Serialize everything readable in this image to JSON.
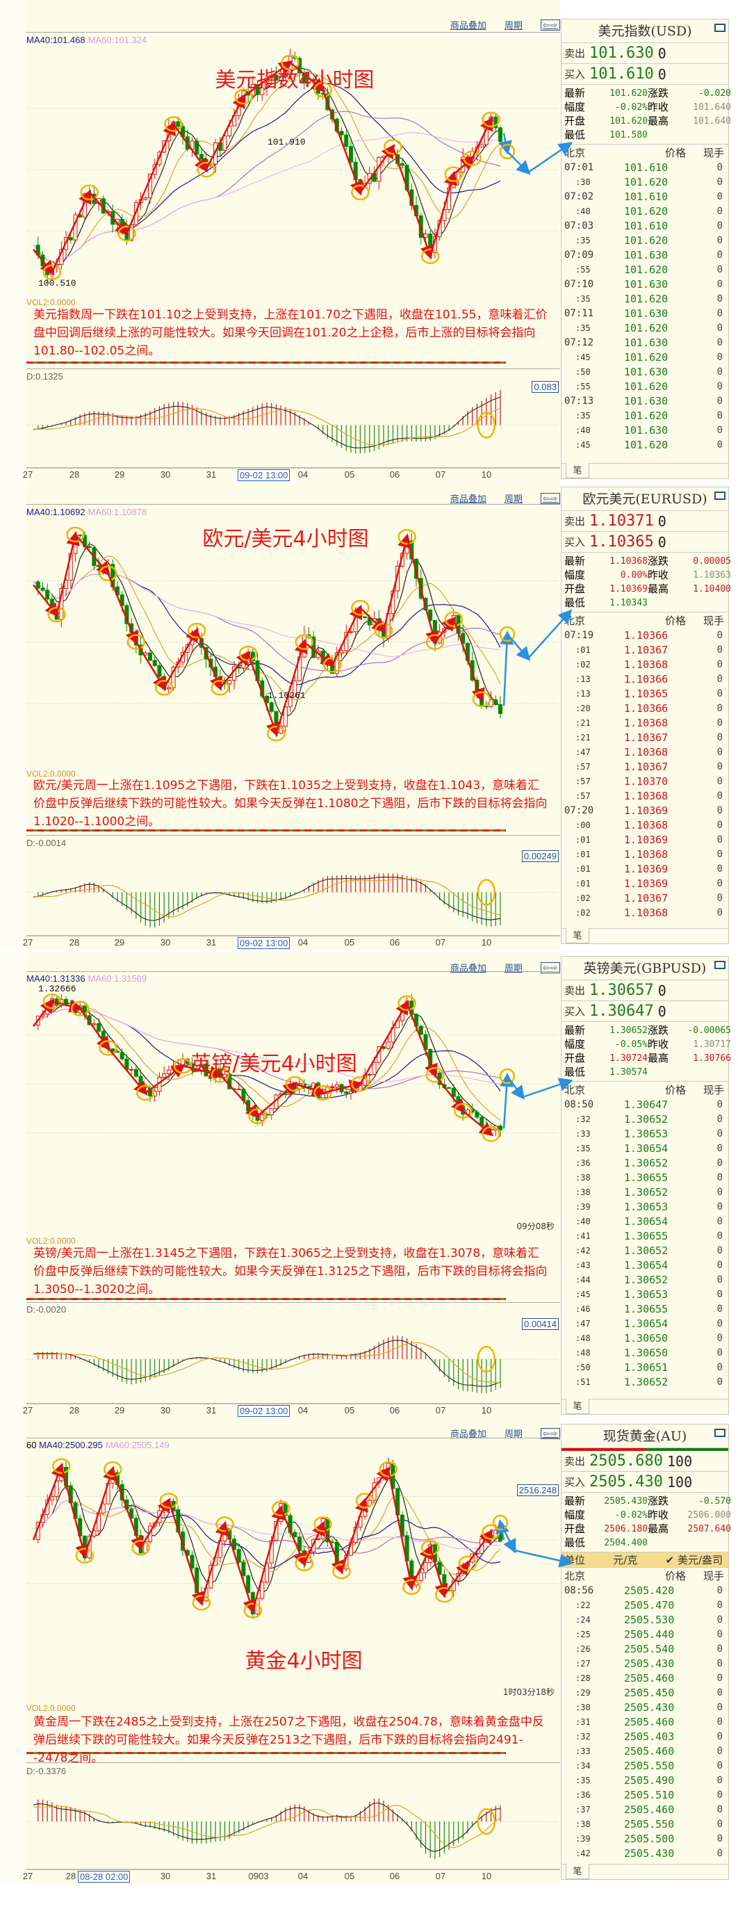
{
  "toolbar": {
    "overlay_label": "商品叠加",
    "period_label": "周期",
    "nav_label": "⇦⇨"
  },
  "colors": {
    "up": "#c8141e",
    "down": "#1e7a1e",
    "flat": "#888888",
    "annotation_arrow": "#e01010",
    "highlight_circle": "#f0b400",
    "forecast_arrow": "#2a90e0"
  },
  "panels": [
    {
      "title": "美元指数4小时图",
      "ma40": "MA40:101.468",
      "ma60": "MA60:101.324",
      "price_labels": [
        "101.910",
        "100.510"
      ],
      "vol2": "VOL2:0.0000",
      "commentary": "美元指数周一下跌在101.10之上受到支持，上涨在101.70之下遇阻，收盘在101.55，意味着汇价盘中回调后继续上涨的可能性较大。如果今天回调在101.20之上企稳，后市上涨的目标将会指向101.80--102.05之间。",
      "macd_label": "D:0.1325",
      "macd_value": "0.083",
      "timer": "",
      "axis": [
        {
          "text": "27"
        },
        {
          "text": "28"
        },
        {
          "text": "29"
        },
        {
          "text": "30"
        },
        {
          "text": "31"
        },
        {
          "text": "09-02 13:00",
          "highlight": true
        },
        {
          "text": "04"
        },
        {
          "text": "05"
        },
        {
          "text": "06"
        },
        {
          "text": "07"
        },
        {
          "text": "10"
        }
      ],
      "trend": "up",
      "sidebar": {
        "name": "美元指数(USD)",
        "sell_label": "卖出",
        "sell": "101.630",
        "sell_vol": "0",
        "sell_color": "down",
        "buy_label": "买入",
        "buy": "101.610",
        "buy_vol": "0",
        "buy_color": "down",
        "stats": [
          {
            "label": "最新",
            "value": "101.620",
            "color": "down"
          },
          {
            "label": "涨跌",
            "value": "-0.020",
            "color": "down"
          },
          {
            "label": "幅度",
            "value": "-0.02%",
            "color": "down"
          },
          {
            "label": "昨收",
            "value": "101.640",
            "color": "flat"
          },
          {
            "label": "开盘",
            "value": "101.620",
            "color": "down"
          },
          {
            "label": "最高",
            "value": "101.640",
            "color": "flat"
          },
          {
            "label": "最低",
            "value": "101.580",
            "color": "down"
          }
        ],
        "headers": [
          "北京",
          "价格",
          "现手"
        ],
        "tick_color": "down",
        "ticks": [
          [
            "07:01",
            "101.610",
            "0"
          ],
          [
            ":30",
            "101.620",
            "0"
          ],
          [
            "07:02",
            "101.610",
            "0"
          ],
          [
            ":40",
            "101.620",
            "0"
          ],
          [
            "07:03",
            "101.610",
            "0"
          ],
          [
            ":35",
            "101.620",
            "0"
          ],
          [
            "07:09",
            "101.630",
            "0"
          ],
          [
            ":55",
            "101.620",
            "0"
          ],
          [
            "07:10",
            "101.630",
            "0"
          ],
          [
            ":35",
            "101.620",
            "0"
          ],
          [
            "07:11",
            "101.630",
            "0"
          ],
          [
            ":35",
            "101.620",
            "0"
          ],
          [
            "07:12",
            "101.630",
            "0"
          ],
          [
            ":45",
            "101.620",
            "0"
          ],
          [
            ":50",
            "101.630",
            "0"
          ],
          [
            ":55",
            "101.620",
            "0"
          ],
          [
            "07:13",
            "101.630",
            "0"
          ],
          [
            ":35",
            "101.620",
            "0"
          ],
          [
            ":40",
            "101.630",
            "0"
          ],
          [
            ":45",
            "101.620",
            "0"
          ]
        ],
        "tab": "笔"
      }
    },
    {
      "title": "欧元/美元4小时图",
      "ma40": "MA40:1.10692",
      "ma60": "MA60:1.10878",
      "price_labels": [
        "1.10261"
      ],
      "vol2": "VOL2:0.0000",
      "commentary": "欧元/美元周一上涨在1.1095之下遇阻，下跌在1.1035之上受到支持，收盘在1.1043，意味着汇价盘中反弹后继续下跌的可能性较大。如果今天反弹在1.1080之下遇阻，后市下跌的目标将会指向1.1020--1.1000之间。",
      "macd_label": "D:-0.0014",
      "macd_value": "0.00249",
      "timer": "",
      "axis": [
        {
          "text": "27"
        },
        {
          "text": "28"
        },
        {
          "text": "29"
        },
        {
          "text": "30"
        },
        {
          "text": "31"
        },
        {
          "text": "09-02 13:00",
          "highlight": true
        },
        {
          "text": "04"
        },
        {
          "text": "05"
        },
        {
          "text": "06"
        },
        {
          "text": "07"
        },
        {
          "text": "10"
        }
      ],
      "trend": "down",
      "sidebar": {
        "name": "欧元美元(EURUSD)",
        "sell_label": "卖出",
        "sell": "1.10371",
        "sell_vol": "0",
        "sell_color": "up",
        "buy_label": "买入",
        "buy": "1.10365",
        "buy_vol": "0",
        "buy_color": "up",
        "stats": [
          {
            "label": "最新",
            "value": "1.10368",
            "color": "up"
          },
          {
            "label": "涨跌",
            "value": "0.00005",
            "color": "up"
          },
          {
            "label": "幅度",
            "value": "0.00%",
            "color": "up"
          },
          {
            "label": "昨收",
            "value": "1.10363",
            "color": "flat"
          },
          {
            "label": "开盘",
            "value": "1.10369",
            "color": "up"
          },
          {
            "label": "最高",
            "value": "1.10400",
            "color": "up"
          },
          {
            "label": "最低",
            "value": "1.10343",
            "color": "down"
          }
        ],
        "headers": [
          "北京",
          "价格",
          "现手"
        ],
        "tick_color": "up",
        "ticks": [
          [
            "07:19",
            "1.10366",
            "0"
          ],
          [
            ":01",
            "1.10367",
            "0"
          ],
          [
            ":02",
            "1.10368",
            "0"
          ],
          [
            ":13",
            "1.10366",
            "0"
          ],
          [
            ":13",
            "1.10365",
            "0"
          ],
          [
            ":20",
            "1.10366",
            "0"
          ],
          [
            ":21",
            "1.10368",
            "0"
          ],
          [
            ":21",
            "1.10367",
            "0"
          ],
          [
            ":47",
            "1.10368",
            "0"
          ],
          [
            ":57",
            "1.10367",
            "0"
          ],
          [
            ":57",
            "1.10370",
            "0"
          ],
          [
            ":57",
            "1.10368",
            "0"
          ],
          [
            "07:20",
            "1.10369",
            "0"
          ],
          [
            ":00",
            "1.10368",
            "0"
          ],
          [
            ":01",
            "1.10369",
            "0"
          ],
          [
            ":01",
            "1.10368",
            "0"
          ],
          [
            ":01",
            "1.10369",
            "0"
          ],
          [
            ":01",
            "1.10369",
            "0"
          ],
          [
            ":02",
            "1.10367",
            "0"
          ],
          [
            ":02",
            "1.10368",
            "0"
          ]
        ],
        "tab": "笔"
      }
    },
    {
      "title": "英镑/美元4小时图",
      "ma40": "MA40:1.31336",
      "ma60": "MA60:1.31569",
      "price_labels": [
        "1.32666"
      ],
      "vol2": "VOL2:0.0000",
      "commentary": "英镑/美元周一上涨在1.3145之下遇阻，下跌在1.3065之上受到支持，收盘在1.3078，意味着汇价盘中反弹后继续下跌的可能性较大。如果今天反弹在1.3125之下遇阻，后市下跌的目标将会指向1.3050--1.3020之间。",
      "macd_label": "D:-0.0020",
      "macd_value": "0.00414",
      "timer": "09分08秒",
      "axis": [
        {
          "text": "27"
        },
        {
          "text": "28"
        },
        {
          "text": "29"
        },
        {
          "text": "30"
        },
        {
          "text": "31"
        },
        {
          "text": "09-02 13:00",
          "highlight": true
        },
        {
          "text": "04"
        },
        {
          "text": "05"
        },
        {
          "text": "06"
        },
        {
          "text": "07"
        },
        {
          "text": "10"
        }
      ],
      "trend": "up",
      "sidebar": {
        "name": "英镑美元(GBPUSD)",
        "sell_label": "卖出",
        "sell": "1.30657",
        "sell_vol": "0",
        "sell_color": "down",
        "buy_label": "买入",
        "buy": "1.30647",
        "buy_vol": "0",
        "buy_color": "down",
        "stats": [
          {
            "label": "最新",
            "value": "1.30652",
            "color": "down"
          },
          {
            "label": "涨跌",
            "value": "-0.00065",
            "color": "down"
          },
          {
            "label": "幅度",
            "value": "-0.05%",
            "color": "down"
          },
          {
            "label": "昨收",
            "value": "1.30717",
            "color": "flat"
          },
          {
            "label": "开盘",
            "value": "1.30724",
            "color": "up"
          },
          {
            "label": "最高",
            "value": "1.30766",
            "color": "up"
          },
          {
            "label": "最低",
            "value": "1.30574",
            "color": "down"
          }
        ],
        "headers": [
          "北京",
          "价格",
          "现手"
        ],
        "tick_color": "down",
        "ticks": [
          [
            "08:50",
            "1.30647",
            "0"
          ],
          [
            ":32",
            "1.30652",
            "0"
          ],
          [
            ":33",
            "1.30653",
            "0"
          ],
          [
            ":35",
            "1.30654",
            "0"
          ],
          [
            ":36",
            "1.30652",
            "0"
          ],
          [
            ":38",
            "1.30655",
            "0"
          ],
          [
            ":38",
            "1.30652",
            "0"
          ],
          [
            ":39",
            "1.30653",
            "0"
          ],
          [
            ":40",
            "1.30654",
            "0"
          ],
          [
            ":41",
            "1.30655",
            "0"
          ],
          [
            ":42",
            "1.30652",
            "0"
          ],
          [
            ":43",
            "1.30654",
            "0"
          ],
          [
            ":44",
            "1.30652",
            "0"
          ],
          [
            ":45",
            "1.30653",
            "0"
          ],
          [
            ":46",
            "1.30655",
            "0"
          ],
          [
            ":47",
            "1.30654",
            "0"
          ],
          [
            ":48",
            "1.30650",
            "0"
          ],
          [
            ":48",
            "1.30650",
            "0"
          ],
          [
            ":50",
            "1.30651",
            "0"
          ],
          [
            ":51",
            "1.30652",
            "0"
          ]
        ],
        "tab": "笔"
      }
    },
    {
      "title": "黄金4小时图",
      "ma_prefix": "60",
      "ma40": "MA40:2500.295",
      "ma60": "MA60:2505.149",
      "price_labels": [],
      "price_box": "2516.248",
      "vol2": "VOL2:0.0000",
      "commentary": "黄金周一下跌在2485之上受到支持，上涨在2507之下遇阻，收盘在2504.78，意味着黄金盘中反弹后继续下跌的可能性较大。如果今天反弹在2513之下遇阻，后市下跌的目标将会指向2491--2478之间。",
      "macd_label": "D:-0.3376",
      "macd_value": "",
      "timer": "1时03分18秒",
      "axis": [
        {
          "text": "27"
        },
        {
          "text": "28"
        },
        {
          "text": "08-28 02:00",
          "highlight": true
        },
        {
          "text": "30"
        },
        {
          "text": "31"
        },
        {
          "text": "0903"
        },
        {
          "text": "04"
        },
        {
          "text": "05"
        },
        {
          "text": "06"
        },
        {
          "text": "07"
        },
        {
          "text": "10"
        }
      ],
      "trend": "down",
      "sidebar": {
        "name": "现货黄金(AU)",
        "sell_label": "卖出",
        "sell": "2505.680",
        "sell_vol": "100",
        "sell_color": "down",
        "buy_label": "买入",
        "buy": "2505.430",
        "buy_vol": "100",
        "buy_color": "down",
        "stats": [
          {
            "label": "最新",
            "value": "2505.430",
            "color": "down"
          },
          {
            "label": "涨跌",
            "value": "-0.570",
            "color": "down"
          },
          {
            "label": "幅度",
            "value": "-0.02%",
            "color": "down"
          },
          {
            "label": "昨收",
            "value": "2506.000",
            "color": "flat"
          },
          {
            "label": "开盘",
            "value": "2506.180",
            "color": "up"
          },
          {
            "label": "最高",
            "value": "2507.640",
            "color": "up"
          },
          {
            "label": "最低",
            "value": "2504.400",
            "color": "down"
          }
        ],
        "unit": {
          "label": "单位",
          "option1": "元/克",
          "option2": "✔ 美元/盎司"
        },
        "headers": [
          "北京",
          "价格",
          "现手"
        ],
        "tick_color": "down",
        "ticks": [
          [
            "08:56",
            "2505.420",
            "0"
          ],
          [
            ":22",
            "2505.470",
            "0"
          ],
          [
            ":24",
            "2505.530",
            "0"
          ],
          [
            ":25",
            "2505.440",
            "0"
          ],
          [
            ":26",
            "2505.540",
            "0"
          ],
          [
            ":27",
            "2505.430",
            "0"
          ],
          [
            ":28",
            "2505.460",
            "0"
          ],
          [
            ":29",
            "2505.450",
            "0"
          ],
          [
            ":30",
            "2505.430",
            "0"
          ],
          [
            ":31",
            "2505.460",
            "0"
          ],
          [
            ":32",
            "2505.403",
            "0"
          ],
          [
            ":33",
            "2505.460",
            "0"
          ],
          [
            ":34",
            "2505.550",
            "0"
          ],
          [
            ":35",
            "2505.490",
            "0"
          ],
          [
            ":36",
            "2505.510",
            "0"
          ],
          [
            ":37",
            "2505.460",
            "0"
          ],
          [
            ":38",
            "2505.550",
            "0"
          ],
          [
            ":39",
            "2505.500",
            "0"
          ],
          [
            ":42",
            "2505.430",
            "0"
          ]
        ],
        "tab": "笔"
      }
    }
  ]
}
